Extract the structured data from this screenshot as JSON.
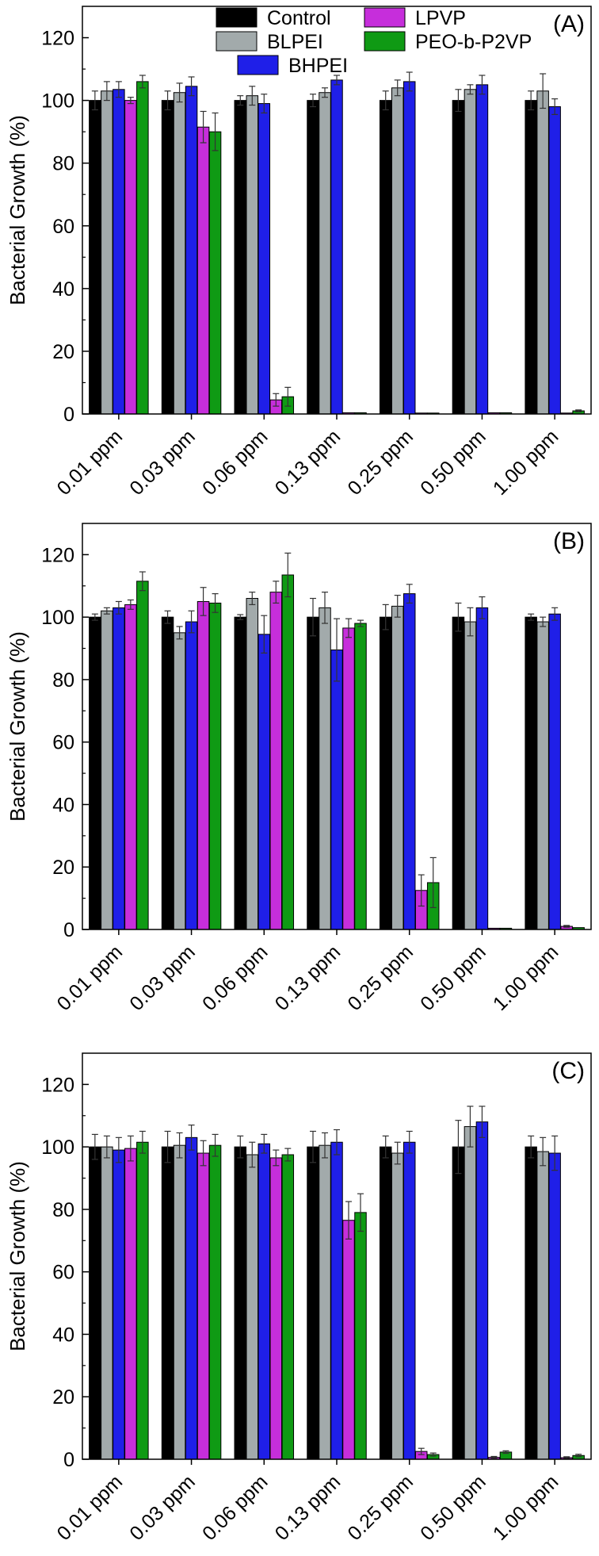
{
  "chart_data": [
    {
      "type": "bar",
      "panel_label": "(A)",
      "ylabel": "Bacterial Growth (%)",
      "xlabel": "",
      "ylim": [
        0,
        130
      ],
      "yticks": [
        0,
        20,
        40,
        60,
        80,
        100,
        120
      ],
      "grid": false,
      "legend_position": "top",
      "categories": [
        "0.01 ppm",
        "0.03 ppm",
        "0.06 ppm",
        "0.13 ppm",
        "0.25 ppm",
        "0.50 ppm",
        "1.00 ppm"
      ],
      "series": [
        {
          "name": "Control",
          "color": "#000000",
          "values": [
            100,
            100,
            100,
            100,
            100,
            100,
            100
          ],
          "errors": [
            3,
            3,
            1.5,
            2,
            3,
            3.5,
            3
          ]
        },
        {
          "name": "BLPEI",
          "color": "#a2aaab",
          "values": [
            103,
            102.5,
            101.5,
            102.5,
            104,
            103.5,
            103
          ],
          "errors": [
            3,
            3,
            3,
            1.5,
            2.5,
            1.5,
            5.5
          ]
        },
        {
          "name": "BHPEI",
          "color": "#1f1fe8",
          "values": [
            103.5,
            104.5,
            99,
            106.5,
            106,
            105,
            98
          ],
          "errors": [
            2.5,
            3,
            3,
            1.5,
            3,
            3,
            2.5
          ]
        },
        {
          "name": "LPVP",
          "color": "#c62edb",
          "values": [
            100,
            91.5,
            4.5,
            0.4,
            0.3,
            0.4,
            0.3
          ],
          "errors": [
            1,
            5,
            2,
            0.2,
            0.2,
            0.2,
            0.2
          ]
        },
        {
          "name": "PEO-b-P2VP",
          "color": "#0f9a14",
          "values": [
            106,
            90,
            5.5,
            0.4,
            0.3,
            0.4,
            1
          ],
          "errors": [
            2,
            6,
            3,
            0.2,
            0.2,
            0.2,
            0.3
          ]
        }
      ]
    },
    {
      "type": "bar",
      "panel_label": "(B)",
      "ylabel": "Bacterial Growth (%)",
      "xlabel": "",
      "ylim": [
        0,
        130
      ],
      "yticks": [
        0,
        20,
        40,
        60,
        80,
        100,
        120
      ],
      "grid": false,
      "categories": [
        "0.01 ppm",
        "0.03 ppm",
        "0.06 ppm",
        "0.13 ppm",
        "0.25 ppm",
        "0.50 ppm",
        "1.00 ppm"
      ],
      "series": [
        {
          "name": "Control",
          "color": "#000000",
          "values": [
            100,
            100,
            100,
            100,
            100,
            100,
            100
          ],
          "errors": [
            1,
            2,
            0.8,
            6,
            4,
            4.5,
            1
          ]
        },
        {
          "name": "BLPEI",
          "color": "#a2aaab",
          "values": [
            102,
            95,
            106,
            103,
            103.5,
            98.5,
            98.5
          ],
          "errors": [
            1,
            2,
            2,
            5,
            3.5,
            4.5,
            1.5
          ]
        },
        {
          "name": "BHPEI",
          "color": "#1f1fe8",
          "values": [
            103,
            98.5,
            94.5,
            89.5,
            107.5,
            103,
            101
          ],
          "errors": [
            2,
            3.5,
            6,
            10,
            3,
            3.5,
            2
          ]
        },
        {
          "name": "LPVP",
          "color": "#c62edb",
          "values": [
            104,
            105,
            108,
            96.5,
            12.5,
            0.4,
            1
          ],
          "errors": [
            1.5,
            4.5,
            3.5,
            3,
            5,
            0.2,
            0.3
          ]
        },
        {
          "name": "PEO-b-P2VP",
          "color": "#0f9a14",
          "values": [
            111.5,
            104.5,
            113.5,
            98,
            15,
            0.4,
            0.6
          ],
          "errors": [
            3,
            3,
            7,
            1,
            8,
            0.2,
            0.2
          ]
        }
      ]
    },
    {
      "type": "bar",
      "panel_label": "(C)",
      "ylabel": "Bacterial Growth (%)",
      "xlabel": "",
      "ylim": [
        0,
        130
      ],
      "yticks": [
        0,
        20,
        40,
        60,
        80,
        100,
        120
      ],
      "grid": false,
      "categories": [
        "0.01 ppm",
        "0.03 ppm",
        "0.06 ppm",
        "0.13 ppm",
        "0.25 ppm",
        "0.50 ppm",
        "1.00 ppm"
      ],
      "series": [
        {
          "name": "Control",
          "color": "#000000",
          "values": [
            100,
            100,
            100,
            100,
            100,
            100,
            100
          ],
          "errors": [
            4,
            5,
            3.5,
            5,
            3.5,
            8.5,
            3.5
          ]
        },
        {
          "name": "BLPEI",
          "color": "#a2aaab",
          "values": [
            100,
            100.5,
            97.5,
            100.5,
            98,
            106.5,
            98.5
          ],
          "errors": [
            3.5,
            4,
            4,
            4,
            3.5,
            6.5,
            4.5
          ]
        },
        {
          "name": "BHPEI",
          "color": "#1f1fe8",
          "values": [
            99,
            103,
            101,
            101.5,
            101.5,
            108,
            98
          ],
          "errors": [
            4,
            4,
            3,
            4,
            3.5,
            5,
            5.5
          ]
        },
        {
          "name": "LPVP",
          "color": "#c62edb",
          "values": [
            99.5,
            98,
            96.5,
            76.5,
            2.5,
            0.6,
            0.5
          ],
          "errors": [
            4,
            4,
            2.5,
            6,
            1,
            0.3,
            0.3
          ]
        },
        {
          "name": "PEO-b-P2VP",
          "color": "#0f9a14",
          "values": [
            101.5,
            100.5,
            97.5,
            79,
            1.5,
            2.3,
            1.2
          ],
          "errors": [
            3.5,
            3.5,
            2,
            6,
            0.5,
            0.4,
            0.4
          ]
        }
      ]
    }
  ]
}
